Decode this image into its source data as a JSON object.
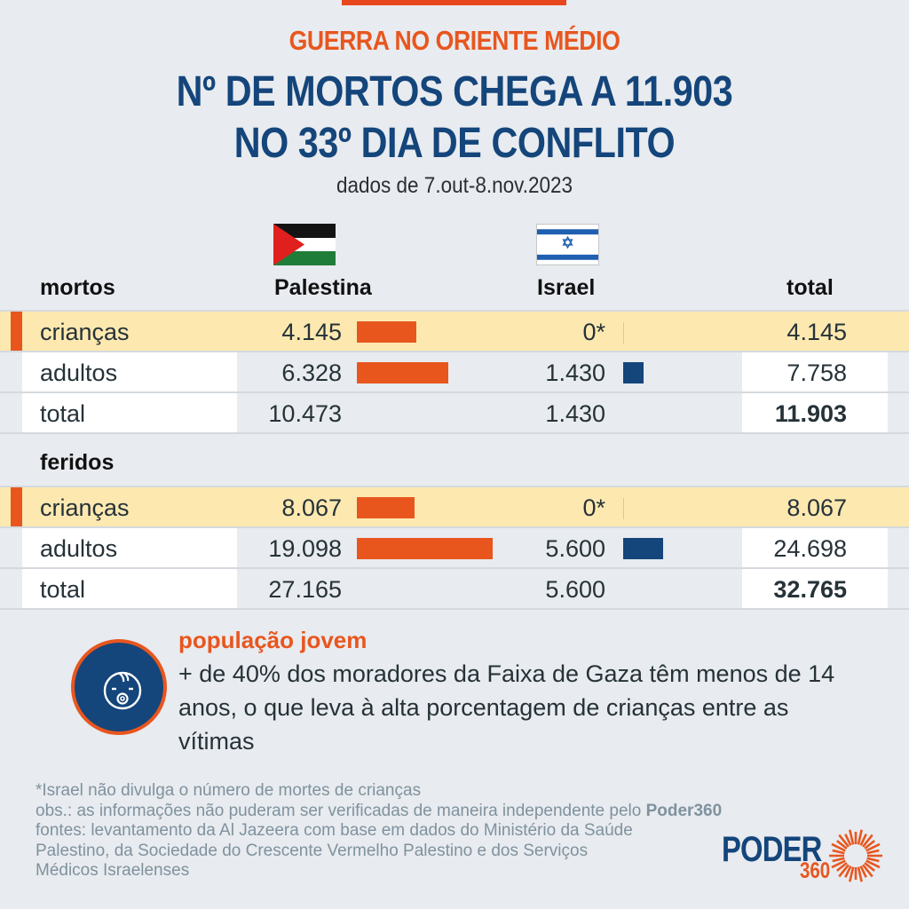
{
  "header": {
    "kicker": "GUERRA NO ORIENTE MÉDIO",
    "title_line1": "Nº DE MORTOS CHEGA A 11.903",
    "title_line2": "NO 33º DIA DE CONFLITO",
    "subtitle": "dados de 7.out-8.nov.2023"
  },
  "colors": {
    "accent_orange": "#e8561e",
    "brand_blue": "#14457b",
    "highlight_row": "#fde9b0"
  },
  "columns": {
    "palestine": "Palestina",
    "israel": "Israel",
    "total": "total",
    "palestine_flag_icon": "palestine-flag-icon",
    "israel_flag_icon": "israel-flag-icon"
  },
  "chart_data": {
    "type": "table",
    "title": "Nº DE MORTOS CHEGA A 11.903 NO 33º DIA DE CONFLITO",
    "columns": [
      "Palestina",
      "Israel",
      "total"
    ],
    "sections": [
      {
        "name": "mortos",
        "rows": [
          {
            "label": "crianças",
            "palestine": "4.145",
            "israel": "0*",
            "total": "4.145",
            "palestine_value": 4145,
            "israel_value": 0,
            "highlight": true
          },
          {
            "label": "adultos",
            "palestine": "6.328",
            "israel": "1.430",
            "total": "7.758",
            "palestine_value": 6328,
            "israel_value": 1430,
            "highlight": false
          },
          {
            "label": "total",
            "palestine": "10.473",
            "israel": "1.430",
            "total": "11.903",
            "is_total": true
          }
        ]
      },
      {
        "name": "feridos",
        "rows": [
          {
            "label": "crianças",
            "palestine": "8.067",
            "israel": "0*",
            "total": "8.067",
            "palestine_value": 8067,
            "israel_value": 0,
            "highlight": true
          },
          {
            "label": "adultos",
            "palestine": "19.098",
            "israel": "5.600",
            "total": "24.698",
            "palestine_value": 19098,
            "israel_value": 5600,
            "highlight": false
          },
          {
            "label": "total",
            "palestine": "27.165",
            "israel": "5.600",
            "total": "32.765",
            "is_total": true
          }
        ]
      }
    ]
  },
  "info": {
    "icon": "baby-face-icon",
    "title": "população jovem",
    "text": "+ de 40% dos moradores da Faixa de Gaza têm menos de 14 anos, o que leva à alta porcentagem de crianças entre as vítimas"
  },
  "notes": {
    "line1": "*Israel não divulga o número de mortes de crianças",
    "line2_prefix": "obs.: as informações não puderam ser verificadas de maneira independente pelo ",
    "line2_brand": "Poder360",
    "line3": "fontes: levantamento da Al Jazeera com base em dados do Ministério da Saúde",
    "line4": "Palestino, da Sociedade do Crescente Vermelho Palestino e dos Serviços",
    "line5": "Médicos Israelenses"
  },
  "logo": {
    "word": "PODER",
    "number": "360"
  }
}
